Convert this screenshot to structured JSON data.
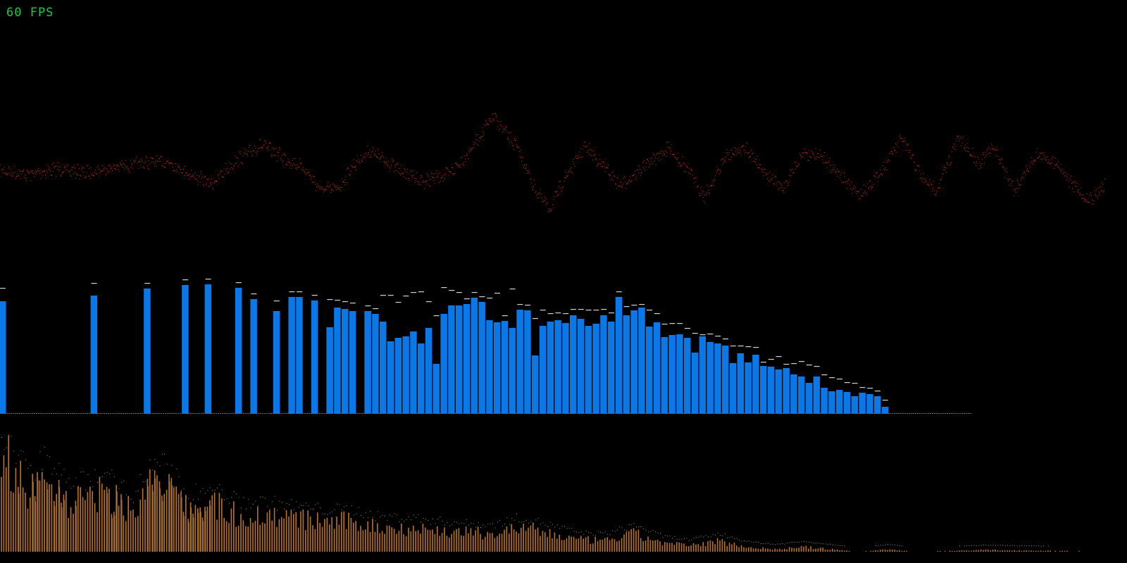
{
  "hud": {
    "fps_text": "60 FPS"
  },
  "colors": {
    "background": "#000000",
    "fps": "#1ec84a",
    "waveform": "#c8281e",
    "spectrum_bars": "#0a78e6",
    "peak_caps": "#d0d0d0",
    "fine_spectrum": "#b87320",
    "fine_spectrum_highlight": "#f0b8a0",
    "fine_peaks": "#9a9a9a"
  },
  "spectrum_bars": [
    160,
    0,
    0,
    0,
    0,
    0,
    0,
    0,
    0,
    0,
    0,
    0,
    168,
    0,
    0,
    0,
    0,
    0,
    0,
    178,
    0,
    0,
    0,
    0,
    183,
    0,
    0,
    184,
    0,
    0,
    0,
    179,
    0,
    163,
    0,
    0,
    146,
    0,
    166,
    166,
    0,
    161,
    0,
    123,
    151,
    149,
    146,
    0,
    146,
    142,
    131,
    103,
    108,
    110,
    117,
    100,
    122,
    71,
    142,
    154,
    154,
    156,
    165,
    159,
    133,
    130,
    132,
    122,
    148,
    147,
    83,
    125,
    131,
    133,
    129,
    140,
    135,
    125,
    128,
    140,
    131,
    166,
    140,
    147,
    151,
    124,
    130,
    109,
    112,
    113,
    108,
    87,
    110,
    102,
    100,
    97,
    72,
    86,
    73,
    84,
    68,
    67,
    63,
    65,
    56,
    53,
    44,
    53,
    37,
    32,
    34,
    31,
    25,
    30,
    28,
    25,
    10,
    0,
    0,
    0,
    0,
    0,
    0,
    0,
    0,
    0,
    0,
    0,
    0
  ],
  "spectrum_peaks": [
    171,
    0,
    0,
    0,
    0,
    0,
    0,
    0,
    0,
    0,
    0,
    0,
    178,
    0,
    0,
    0,
    0,
    0,
    0,
    178,
    0,
    0,
    0,
    0,
    183,
    0,
    0,
    184,
    0,
    0,
    0,
    179,
    0,
    163,
    0,
    0,
    153,
    0,
    166,
    166,
    0,
    161,
    0,
    155,
    154,
    152,
    150,
    0,
    146,
    142,
    161,
    161,
    151,
    160,
    165,
    166,
    152,
    132,
    172,
    168,
    165,
    156,
    165,
    159,
    157,
    164,
    132,
    170,
    148,
    147,
    128,
    140,
    135,
    136,
    135,
    141,
    141,
    140,
    140,
    141,
    136,
    166,
    145,
    147,
    148,
    140,
    135,
    120,
    121,
    121,
    114,
    107,
    105,
    106,
    103,
    99,
    89,
    89,
    88,
    87,
    66,
    70,
    74,
    63,
    64,
    67,
    62,
    60,
    48,
    44,
    42,
    37,
    36,
    30,
    29,
    25,
    12,
    0,
    0,
    0,
    0,
    0,
    0,
    0,
    0,
    0,
    0,
    0,
    0
  ]
}
